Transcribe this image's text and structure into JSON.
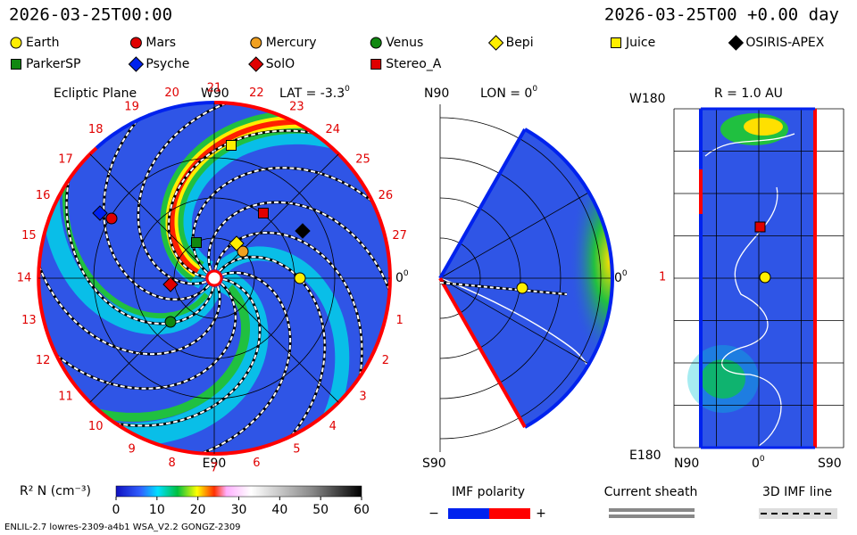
{
  "header": {
    "left": "2026-03-25T00:00",
    "right": "2026-03-25T00 +0.00 day"
  },
  "legend": [
    {
      "label": "Earth",
      "color": "#ffee00",
      "shape": "circle"
    },
    {
      "label": "Mars",
      "color": "#e00000",
      "shape": "circle"
    },
    {
      "label": "Mercury",
      "color": "#f0a020",
      "shape": "circle"
    },
    {
      "label": "Venus",
      "color": "#118811",
      "shape": "circle"
    },
    {
      "label": "Bepi",
      "color": "#ffee00",
      "shape": "diamond"
    },
    {
      "label": "Juice",
      "color": "#ffee00",
      "shape": "square"
    },
    {
      "label": "OSIRIS-APEX",
      "color": "#000000",
      "shape": "diamond"
    },
    {
      "label": "ParkerSP",
      "color": "#118811",
      "shape": "square"
    },
    {
      "label": "Psyche",
      "color": "#0022ee",
      "shape": "diamond"
    },
    {
      "label": "SolO",
      "color": "#e00000",
      "shape": "diamond"
    },
    {
      "label": "Stereo_A",
      "color": "#e00000",
      "shape": "square"
    }
  ],
  "ecliptic": {
    "title": "Ecliptic Plane",
    "top": "W90",
    "bottom": "E90",
    "lat": "LAT = -3.3",
    "lat_sup": "0",
    "right": "0",
    "right_sup": "0",
    "rim_labels": [
      "1",
      "2",
      "3",
      "4",
      "5",
      "6",
      "7",
      "8",
      "9",
      "10",
      "11",
      "12",
      "13",
      "14",
      "15",
      "16",
      "17",
      "18",
      "19",
      "20",
      "21",
      "22",
      "23",
      "24",
      "25",
      "26",
      "27"
    ]
  },
  "meridian": {
    "top": "N90",
    "bottom": "S90",
    "lon": "LON = 0",
    "lon_sup": "0",
    "right": "0",
    "right_sup": "0"
  },
  "shell": {
    "title": "R = 1.0 AU",
    "top": "W180",
    "bottom": "E180",
    "left": "1",
    "x_left": "N90",
    "x_mid": "0",
    "x_mid_sup": "0",
    "x_right": "S90"
  },
  "colorbar": {
    "label": "R² N (cm⁻³)",
    "ticks": [
      "0",
      "10",
      "20",
      "30",
      "40",
      "50",
      "60"
    ]
  },
  "key": {
    "imf": "IMF polarity",
    "minus": "−",
    "plus": "+",
    "sheath": "Current sheath",
    "imf_line": "3D IMF line"
  },
  "footer": "ENLIL-2.7 lowres-2309-a4b1 WSA_V2.2 GONGZ-2309"
}
